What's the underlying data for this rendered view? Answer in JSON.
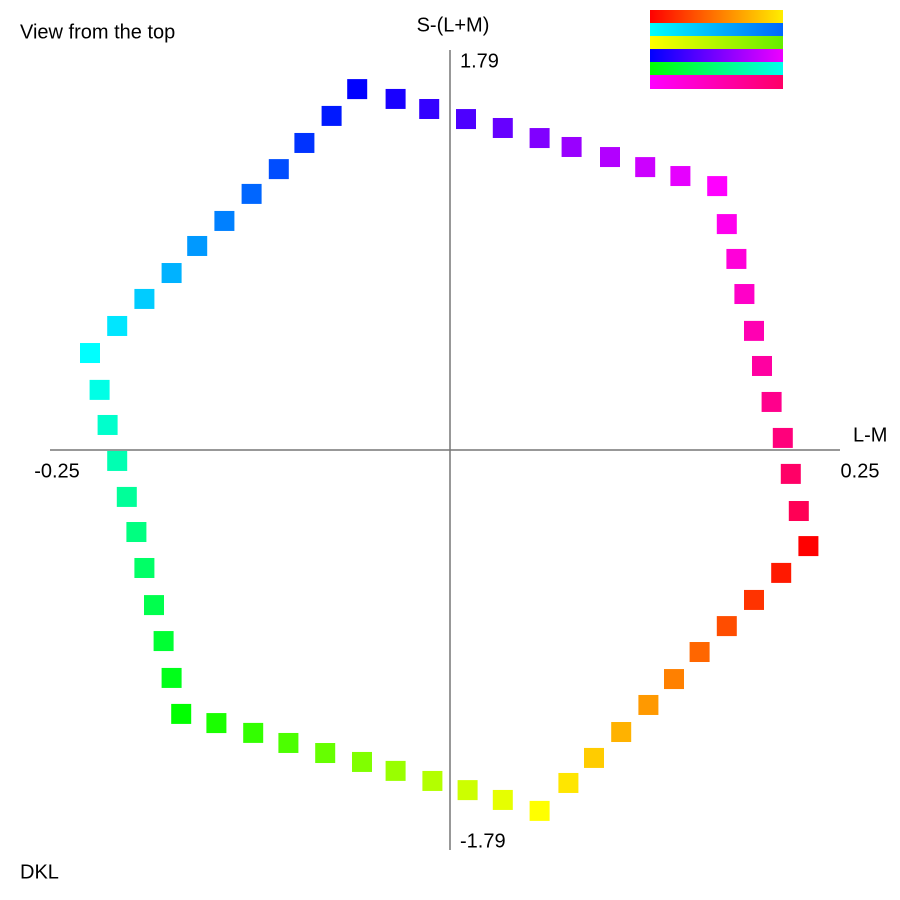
{
  "title": "View from the top",
  "footer": "DKL",
  "chart_data": {
    "type": "scatter",
    "x_label": "L-M",
    "y_label": "S-(L+M)",
    "xlim": [
      -0.25,
      0.25
    ],
    "xticks": [
      -0.25,
      0.25
    ],
    "ylim": [
      -1.79,
      1.79
    ],
    "yticks": [
      -1.79,
      1.79
    ],
    "grid": false,
    "x": [
      0.224,
      0.207,
      0.19,
      0.173,
      0.156,
      0.14,
      0.124,
      0.107,
      0.09,
      0.074,
      0.056,
      0.033,
      0.011,
      -0.011,
      -0.034,
      -0.055,
      -0.078,
      -0.101,
      -0.123,
      -0.146,
      -0.168,
      -0.174,
      -0.179,
      -0.185,
      -0.191,
      -0.196,
      -0.202,
      -0.208,
      -0.214,
      -0.219,
      -0.225,
      -0.208,
      -0.191,
      -0.174,
      -0.158,
      -0.141,
      -0.124,
      -0.107,
      -0.091,
      -0.074,
      -0.058,
      -0.034,
      -0.013,
      0.01,
      0.033,
      0.056,
      0.076,
      0.1,
      0.122,
      0.144,
      0.167,
      0.173,
      0.179,
      0.184,
      0.19,
      0.195,
      0.201,
      0.208,
      0.213,
      0.218
    ],
    "values": [
      -0.43,
      -0.55,
      -0.671,
      -0.788,
      -0.904,
      -1.025,
      -1.141,
      -1.262,
      -1.378,
      -1.49,
      -1.615,
      -1.566,
      -1.522,
      -1.481,
      -1.436,
      -1.396,
      -1.356,
      -1.311,
      -1.266,
      -1.222,
      -1.181,
      -1.02,
      -0.855,
      -0.694,
      -0.528,
      -0.367,
      -0.21,
      -0.049,
      0.112,
      0.269,
      0.434,
      0.555,
      0.676,
      0.792,
      0.913,
      1.025,
      1.146,
      1.257,
      1.374,
      1.495,
      1.615,
      1.571,
      1.526,
      1.481,
      1.441,
      1.396,
      1.356,
      1.311,
      1.266,
      1.226,
      1.181,
      1.011,
      0.855,
      0.698,
      0.533,
      0.376,
      0.215,
      0.054,
      -0.107,
      -0.273
    ],
    "colors": [
      "hsl(0,100%,50%)",
      "hsl(6,100%,50%)",
      "hsl(12,100%,50%)",
      "hsl(18,100%,50%)",
      "hsl(24,100%,50%)",
      "hsl(30,100%,50%)",
      "hsl(36,100%,50%)",
      "hsl(42,100%,50%)",
      "hsl(48,100%,50%)",
      "hsl(54,100%,50%)",
      "hsl(60,100%,50%)",
      "hsl(66,100%,50%)",
      "hsl(72,100%,50%)",
      "hsl(78,100%,50%)",
      "hsl(84,100%,50%)",
      "hsl(90,100%,50%)",
      "hsl(96,100%,50%)",
      "hsl(102,100%,50%)",
      "hsl(108,100%,50%)",
      "hsl(114,100%,50%)",
      "hsl(120,100%,50%)",
      "hsl(126,100%,50%)",
      "hsl(132,100%,50%)",
      "hsl(138,100%,50%)",
      "hsl(144,100%,50%)",
      "hsl(150,100%,50%)",
      "hsl(156,100%,50%)",
      "hsl(162,100%,50%)",
      "hsl(168,100%,50%)",
      "hsl(174,100%,50%)",
      "hsl(180,100%,50%)",
      "hsl(186,100%,50%)",
      "hsl(192,100%,50%)",
      "hsl(198,100%,50%)",
      "hsl(204,100%,50%)",
      "hsl(210,100%,50%)",
      "hsl(216,100%,50%)",
      "hsl(222,100%,50%)",
      "hsl(228,100%,50%)",
      "hsl(234,100%,50%)",
      "hsl(240,100%,50%)",
      "hsl(246,100%,50%)",
      "hsl(252,100%,50%)",
      "hsl(258,100%,50%)",
      "hsl(264,100%,50%)",
      "hsl(270,100%,50%)",
      "hsl(276,100%,50%)",
      "hsl(282,100%,50%)",
      "hsl(288,100%,50%)",
      "hsl(294,100%,50%)",
      "hsl(300,100%,50%)",
      "hsl(304,100%,50%)",
      "hsl(309,100%,50%)",
      "hsl(313,100%,50%)",
      "hsl(318,100%,50%)",
      "hsl(322,100%,50%)",
      "hsl(327,100%,50%)",
      "hsl(331,100%,50%)",
      "hsl(336,100%,50%)",
      "hsl(340,100%,50%)"
    ]
  }
}
